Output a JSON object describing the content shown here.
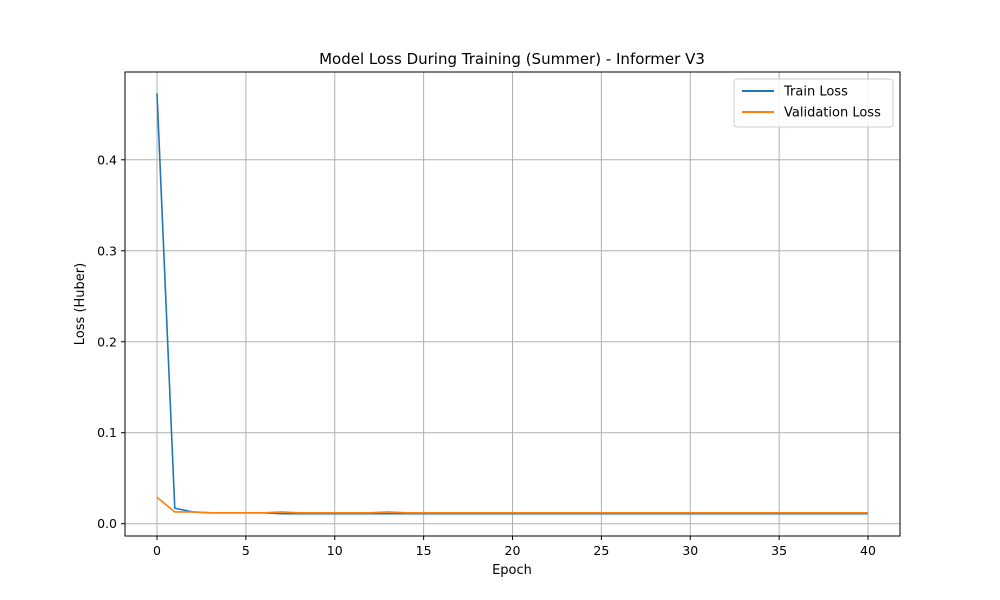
{
  "chart_data": {
    "type": "line",
    "title": "Model Loss During Training (Summer) - Informer V3",
    "xlabel": "Epoch",
    "ylabel": "Loss (Huber)",
    "xlim": [
      -1.8,
      41.8
    ],
    "ylim": [
      -0.0135,
      0.4965
    ],
    "xticks": [
      0,
      5,
      10,
      15,
      20,
      25,
      30,
      35,
      40
    ],
    "yticks": [
      0.0,
      0.1,
      0.2,
      0.3,
      0.4
    ],
    "ytick_labels": [
      "0.0",
      "0.1",
      "0.2",
      "0.3",
      "0.4"
    ],
    "grid": true,
    "legend_position": "top-right",
    "x": [
      0,
      1,
      2,
      3,
      4,
      5,
      6,
      7,
      8,
      9,
      10,
      11,
      12,
      13,
      14,
      15,
      16,
      17,
      18,
      19,
      20,
      21,
      22,
      23,
      24,
      25,
      26,
      27,
      28,
      29,
      30,
      31,
      32,
      33,
      34,
      35,
      36,
      37,
      38,
      39,
      40
    ],
    "series": [
      {
        "name": "Train Loss",
        "color": "#1f77b4",
        "values": [
          0.473,
          0.017,
          0.013,
          0.012,
          0.012,
          0.012,
          0.012,
          0.011,
          0.011,
          0.011,
          0.011,
          0.011,
          0.011,
          0.011,
          0.011,
          0.011,
          0.011,
          0.011,
          0.011,
          0.011,
          0.011,
          0.011,
          0.011,
          0.011,
          0.011,
          0.011,
          0.011,
          0.011,
          0.011,
          0.011,
          0.011,
          0.011,
          0.011,
          0.011,
          0.011,
          0.011,
          0.011,
          0.011,
          0.011,
          0.011,
          0.011
        ]
      },
      {
        "name": "Validation Loss",
        "color": "#ff7f0e",
        "values": [
          0.029,
          0.013,
          0.013,
          0.012,
          0.012,
          0.012,
          0.012,
          0.013,
          0.012,
          0.012,
          0.012,
          0.012,
          0.012,
          0.013,
          0.012,
          0.012,
          0.012,
          0.012,
          0.012,
          0.012,
          0.012,
          0.012,
          0.012,
          0.012,
          0.012,
          0.012,
          0.012,
          0.012,
          0.012,
          0.012,
          0.012,
          0.012,
          0.012,
          0.012,
          0.012,
          0.012,
          0.012,
          0.012,
          0.012,
          0.012,
          0.012
        ]
      }
    ]
  }
}
